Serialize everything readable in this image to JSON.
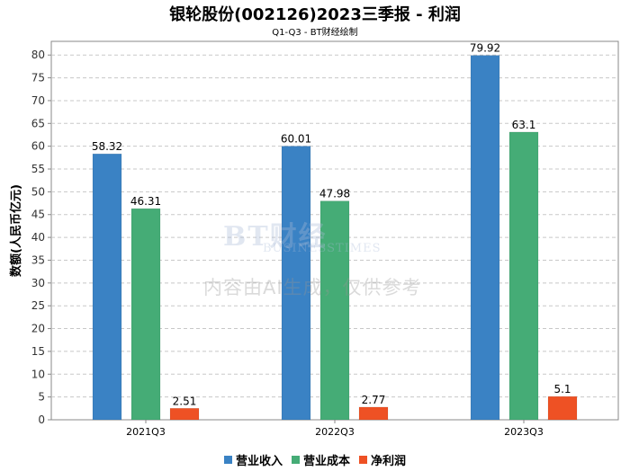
{
  "chart_data": {
    "type": "bar",
    "title": "银轮股份(002126)2023三季报 - 利润",
    "subtitle": "Q1-Q3 - BT财经绘制",
    "ylabel": "数额(人民币亿元)",
    "xlabel": "",
    "categories": [
      "2021Q3",
      "2022Q3",
      "2023Q3"
    ],
    "series": [
      {
        "name": "营业收入",
        "color": "#3a82c4",
        "values": [
          58.32,
          60.01,
          79.92
        ],
        "labels": [
          "58.32",
          "60.01",
          "79.92"
        ]
      },
      {
        "name": "营业成本",
        "color": "#45ac76",
        "values": [
          46.31,
          47.98,
          63.1
        ],
        "labels": [
          "46.31",
          "47.98",
          "63.1"
        ]
      },
      {
        "name": "净利润",
        "color": "#ee5124",
        "values": [
          2.51,
          2.77,
          5.1
        ],
        "labels": [
          "2.51",
          "2.77",
          "5.1"
        ]
      }
    ],
    "ylim": [
      0,
      83
    ],
    "yticks": [
      0,
      5,
      10,
      15,
      20,
      25,
      30,
      35,
      40,
      45,
      50,
      55,
      60,
      65,
      70,
      75,
      80
    ],
    "grid": true,
    "legend_position": "bottom-center"
  },
  "watermark": {
    "logo": "BT财经",
    "logo_sub": "BUSINESSTIMES",
    "notice": "内容由AI生成，仅供参考"
  }
}
